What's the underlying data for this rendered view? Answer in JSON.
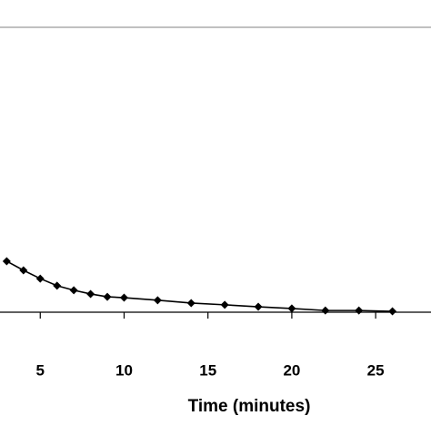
{
  "chart_data": {
    "type": "line",
    "x_label": "Time (minutes)",
    "x": [
      3,
      4,
      5,
      6,
      7,
      8,
      9,
      10,
      12,
      14,
      16,
      18,
      20,
      22,
      24,
      26
    ],
    "series": [
      {
        "color": "#000000",
        "values": [
          17.9,
          14.7,
          11.8,
          9.3,
          7.7,
          6.4,
          5.4,
          5.1,
          4.2,
          3.2,
          2.6,
          1.9,
          1.3,
          0.6,
          0.6,
          0.3
        ]
      }
    ],
    "xlim": [
      2.6,
      28.3
    ],
    "xticks": [
      5,
      10,
      15,
      20,
      25
    ],
    "ylim": [
      0,
      100
    ],
    "grid": false
  }
}
